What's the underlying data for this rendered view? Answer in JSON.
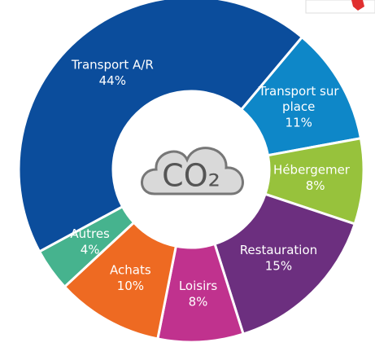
{
  "chart_data": {
    "type": "donut",
    "categories": [
      "Transport sur place",
      "Hébergement",
      "Restauration",
      "Loisirs",
      "Achats",
      "Autres",
      "Transport A/R"
    ],
    "values": [
      11,
      8,
      15,
      8,
      10,
      4,
      44
    ],
    "value_labels": [
      "11%",
      "8%",
      "15%",
      "8%",
      "10%",
      "4%",
      "44%"
    ],
    "colors": [
      "#0e87c8",
      "#97c23c",
      "#6c2f7f",
      "#c0328e",
      "#ee6a22",
      "#46b38e",
      "#0b4d9c"
    ],
    "center_label": "CO₂"
  }
}
